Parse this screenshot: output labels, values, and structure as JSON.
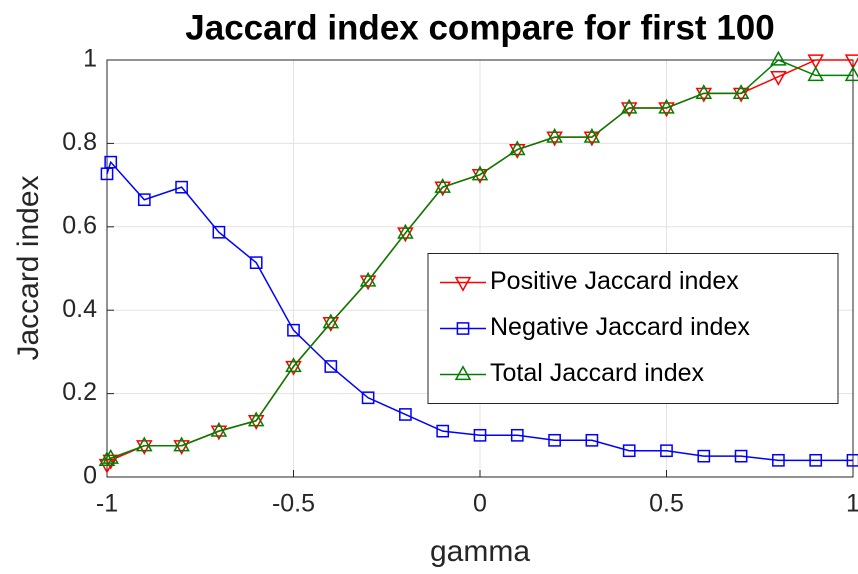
{
  "chart_data": {
    "type": "line",
    "title": "Jaccard index compare for first 100",
    "xlabel": "gamma",
    "ylabel": "Jaccard index",
    "x": [
      -1,
      -0.99,
      -0.9,
      -0.8,
      -0.7,
      -0.6,
      -0.5,
      -0.4,
      -0.3,
      -0.2,
      -0.1,
      0,
      0.1,
      0.2,
      0.3,
      0.4,
      0.5,
      0.6,
      0.7,
      0.8,
      0.9,
      1
    ],
    "series": [
      {
        "name": "Positive Jaccard index",
        "color": "#ff0000",
        "marker": "triangle-down",
        "values": [
          0.03,
          0.04,
          0.075,
          0.075,
          0.11,
          0.135,
          0.265,
          0.37,
          0.47,
          0.585,
          0.695,
          0.725,
          0.785,
          0.815,
          0.815,
          0.885,
          0.885,
          0.92,
          0.92,
          0.96,
          1,
          1
        ]
      },
      {
        "name": "Negative Jaccard index",
        "color": "#0000ff",
        "marker": "square",
        "values": [
          0.727,
          0.755,
          0.665,
          0.695,
          0.587,
          0.514,
          0.352,
          0.265,
          0.19,
          0.15,
          0.11,
          0.1,
          0.1,
          0.088,
          0.088,
          0.063,
          0.063,
          0.05,
          0.05,
          0.04,
          0.04,
          0.04
        ]
      },
      {
        "name": "Total Jaccard index",
        "color": "#008000",
        "marker": "triangle-up",
        "values": [
          0.04,
          0.045,
          0.075,
          0.075,
          0.11,
          0.135,
          0.265,
          0.37,
          0.47,
          0.585,
          0.695,
          0.725,
          0.785,
          0.815,
          0.815,
          0.885,
          0.885,
          0.92,
          0.92,
          1,
          0.963,
          0.963
        ]
      }
    ],
    "xlim": [
      -1,
      1
    ],
    "xticks": [
      -1,
      -0.5,
      0,
      0.5,
      1
    ],
    "ylim": [
      0,
      1
    ],
    "yticks": [
      0,
      0.2,
      0.4,
      0.6,
      0.8,
      1
    ],
    "grid": true,
    "legend": "east"
  }
}
